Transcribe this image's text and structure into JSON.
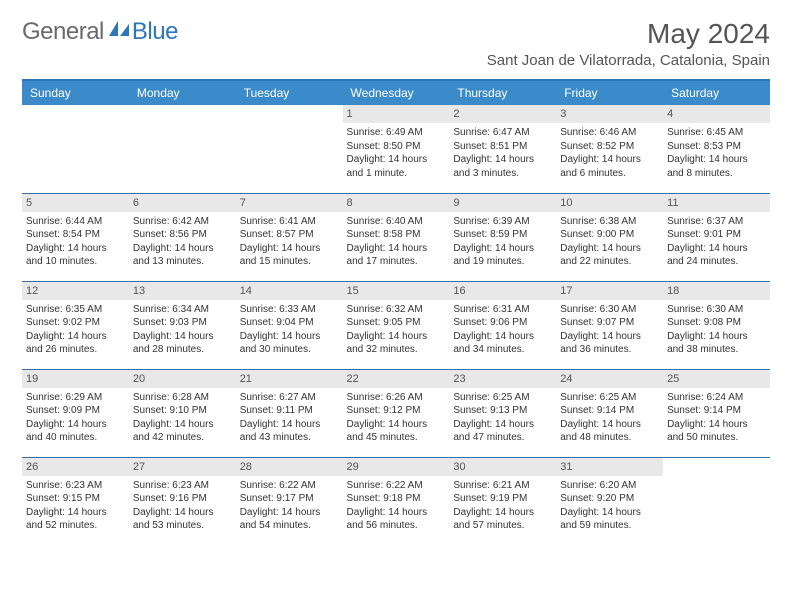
{
  "brand": {
    "general": "General",
    "blue": "Blue"
  },
  "title": "May 2024",
  "location": "Sant Joan de Vilatorrada, Catalonia, Spain",
  "colors": {
    "brand_blue": "#2d76bb",
    "header_bg": "#3b8bca",
    "rule": "#2d76bb",
    "cell_border": "#3b6fa0",
    "daynum_bg": "#e8e8e8",
    "text": "#333333",
    "muted": "#555555"
  },
  "weekdays": [
    "Sunday",
    "Monday",
    "Tuesday",
    "Wednesday",
    "Thursday",
    "Friday",
    "Saturday"
  ],
  "weeks": [
    [
      {
        "n": "",
        "lines": []
      },
      {
        "n": "",
        "lines": []
      },
      {
        "n": "",
        "lines": []
      },
      {
        "n": "1",
        "lines": [
          "Sunrise: 6:49 AM",
          "Sunset: 8:50 PM",
          "Daylight: 14 hours and 1 minute."
        ]
      },
      {
        "n": "2",
        "lines": [
          "Sunrise: 6:47 AM",
          "Sunset: 8:51 PM",
          "Daylight: 14 hours and 3 minutes."
        ]
      },
      {
        "n": "3",
        "lines": [
          "Sunrise: 6:46 AM",
          "Sunset: 8:52 PM",
          "Daylight: 14 hours and 6 minutes."
        ]
      },
      {
        "n": "4",
        "lines": [
          "Sunrise: 6:45 AM",
          "Sunset: 8:53 PM",
          "Daylight: 14 hours and 8 minutes."
        ]
      }
    ],
    [
      {
        "n": "5",
        "lines": [
          "Sunrise: 6:44 AM",
          "Sunset: 8:54 PM",
          "Daylight: 14 hours and 10 minutes."
        ]
      },
      {
        "n": "6",
        "lines": [
          "Sunrise: 6:42 AM",
          "Sunset: 8:56 PM",
          "Daylight: 14 hours and 13 minutes."
        ]
      },
      {
        "n": "7",
        "lines": [
          "Sunrise: 6:41 AM",
          "Sunset: 8:57 PM",
          "Daylight: 14 hours and 15 minutes."
        ]
      },
      {
        "n": "8",
        "lines": [
          "Sunrise: 6:40 AM",
          "Sunset: 8:58 PM",
          "Daylight: 14 hours and 17 minutes."
        ]
      },
      {
        "n": "9",
        "lines": [
          "Sunrise: 6:39 AM",
          "Sunset: 8:59 PM",
          "Daylight: 14 hours and 19 minutes."
        ]
      },
      {
        "n": "10",
        "lines": [
          "Sunrise: 6:38 AM",
          "Sunset: 9:00 PM",
          "Daylight: 14 hours and 22 minutes."
        ]
      },
      {
        "n": "11",
        "lines": [
          "Sunrise: 6:37 AM",
          "Sunset: 9:01 PM",
          "Daylight: 14 hours and 24 minutes."
        ]
      }
    ],
    [
      {
        "n": "12",
        "lines": [
          "Sunrise: 6:35 AM",
          "Sunset: 9:02 PM",
          "Daylight: 14 hours and 26 minutes."
        ]
      },
      {
        "n": "13",
        "lines": [
          "Sunrise: 6:34 AM",
          "Sunset: 9:03 PM",
          "Daylight: 14 hours and 28 minutes."
        ]
      },
      {
        "n": "14",
        "lines": [
          "Sunrise: 6:33 AM",
          "Sunset: 9:04 PM",
          "Daylight: 14 hours and 30 minutes."
        ]
      },
      {
        "n": "15",
        "lines": [
          "Sunrise: 6:32 AM",
          "Sunset: 9:05 PM",
          "Daylight: 14 hours and 32 minutes."
        ]
      },
      {
        "n": "16",
        "lines": [
          "Sunrise: 6:31 AM",
          "Sunset: 9:06 PM",
          "Daylight: 14 hours and 34 minutes."
        ]
      },
      {
        "n": "17",
        "lines": [
          "Sunrise: 6:30 AM",
          "Sunset: 9:07 PM",
          "Daylight: 14 hours and 36 minutes."
        ]
      },
      {
        "n": "18",
        "lines": [
          "Sunrise: 6:30 AM",
          "Sunset: 9:08 PM",
          "Daylight: 14 hours and 38 minutes."
        ]
      }
    ],
    [
      {
        "n": "19",
        "lines": [
          "Sunrise: 6:29 AM",
          "Sunset: 9:09 PM",
          "Daylight: 14 hours and 40 minutes."
        ]
      },
      {
        "n": "20",
        "lines": [
          "Sunrise: 6:28 AM",
          "Sunset: 9:10 PM",
          "Daylight: 14 hours and 42 minutes."
        ]
      },
      {
        "n": "21",
        "lines": [
          "Sunrise: 6:27 AM",
          "Sunset: 9:11 PM",
          "Daylight: 14 hours and 43 minutes."
        ]
      },
      {
        "n": "22",
        "lines": [
          "Sunrise: 6:26 AM",
          "Sunset: 9:12 PM",
          "Daylight: 14 hours and 45 minutes."
        ]
      },
      {
        "n": "23",
        "lines": [
          "Sunrise: 6:25 AM",
          "Sunset: 9:13 PM",
          "Daylight: 14 hours and 47 minutes."
        ]
      },
      {
        "n": "24",
        "lines": [
          "Sunrise: 6:25 AM",
          "Sunset: 9:14 PM",
          "Daylight: 14 hours and 48 minutes."
        ]
      },
      {
        "n": "25",
        "lines": [
          "Sunrise: 6:24 AM",
          "Sunset: 9:14 PM",
          "Daylight: 14 hours and 50 minutes."
        ]
      }
    ],
    [
      {
        "n": "26",
        "lines": [
          "Sunrise: 6:23 AM",
          "Sunset: 9:15 PM",
          "Daylight: 14 hours and 52 minutes."
        ]
      },
      {
        "n": "27",
        "lines": [
          "Sunrise: 6:23 AM",
          "Sunset: 9:16 PM",
          "Daylight: 14 hours and 53 minutes."
        ]
      },
      {
        "n": "28",
        "lines": [
          "Sunrise: 6:22 AM",
          "Sunset: 9:17 PM",
          "Daylight: 14 hours and 54 minutes."
        ]
      },
      {
        "n": "29",
        "lines": [
          "Sunrise: 6:22 AM",
          "Sunset: 9:18 PM",
          "Daylight: 14 hours and 56 minutes."
        ]
      },
      {
        "n": "30",
        "lines": [
          "Sunrise: 6:21 AM",
          "Sunset: 9:19 PM",
          "Daylight: 14 hours and 57 minutes."
        ]
      },
      {
        "n": "31",
        "lines": [
          "Sunrise: 6:20 AM",
          "Sunset: 9:20 PM",
          "Daylight: 14 hours and 59 minutes."
        ]
      },
      {
        "n": "",
        "lines": []
      }
    ]
  ]
}
